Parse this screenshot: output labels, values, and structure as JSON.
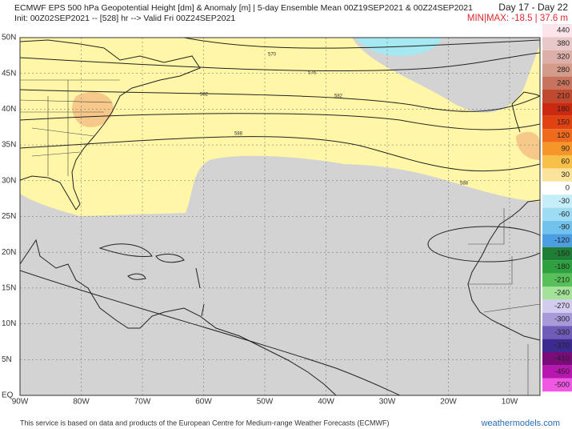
{
  "header": {
    "title": "ECMWF EPS 500 hPa Geopotential Height [dm] & Anomaly [m] | 5-day Ensemble Mean 00Z19SEP2021 & 00Z24SEP2021",
    "day_range": "Day 17 - Day 22",
    "init": "Init: 00Z02SEP2021 -- [528] hr --> Valid Fri 00Z24SEP2021",
    "minmax": "MIN|MAX: -18.5 | 37.6 m"
  },
  "map": {
    "lat_labels": [
      "50N",
      "45N",
      "40N",
      "35N",
      "30N",
      "25N",
      "20N",
      "15N",
      "10N",
      "5N",
      "EQ"
    ],
    "lon_labels": [
      "90W",
      "80W",
      "70W",
      "60W",
      "50W",
      "40W",
      "30W",
      "20W",
      "10W"
    ],
    "contour_labels": [
      "570",
      "576",
      "582",
      "582",
      "588",
      "588"
    ]
  },
  "colorbar": {
    "levels": [
      440,
      380,
      320,
      280,
      240,
      210,
      180,
      150,
      120,
      90,
      60,
      30,
      0,
      -30,
      -60,
      -90,
      -120,
      -150,
      -180,
      -210,
      -240,
      -270,
      -300,
      -330,
      -370,
      -410,
      -450,
      -500
    ]
  },
  "footer": {
    "credit": "This service is based on data and products of the European Centre for Medium-range Weather Forecasts (ECMWF)",
    "site": "weathermodels.com"
  }
}
